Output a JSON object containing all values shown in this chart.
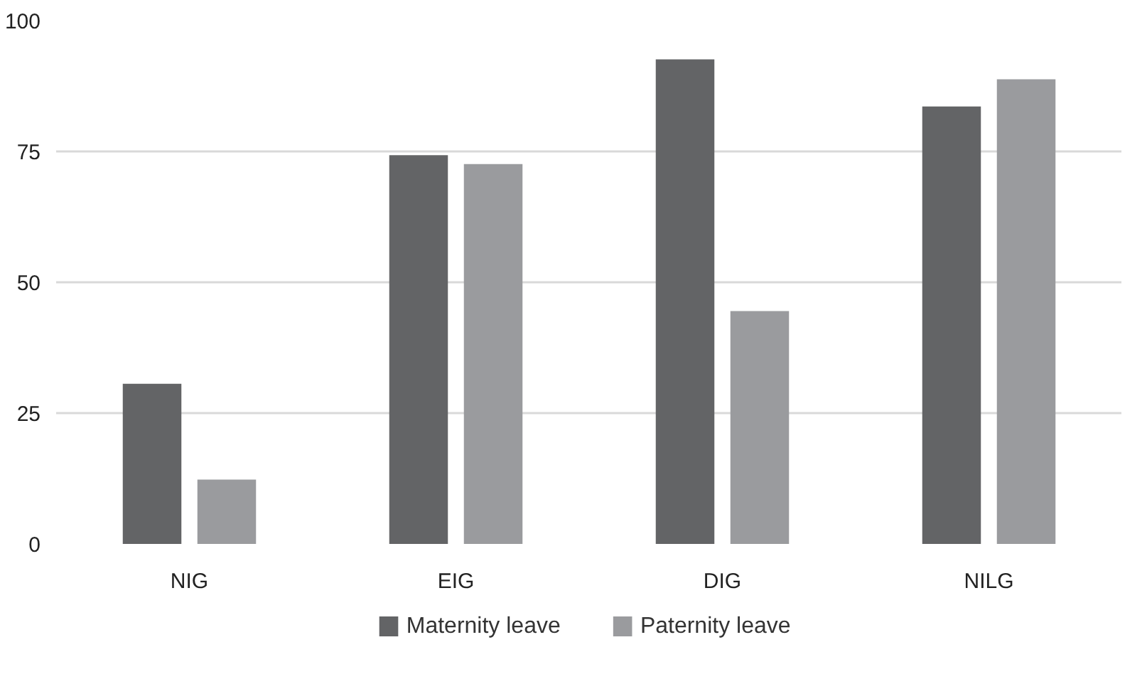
{
  "chart_data": {
    "type": "bar",
    "categories": [
      "NIG",
      "EIG",
      "DIG",
      "NILG"
    ],
    "series": [
      {
        "name": "Maternity leave",
        "color": "#636466",
        "values": [
          30.6,
          74.3,
          92.6,
          83.6
        ]
      },
      {
        "name": "Paternity leave",
        "color": "#9a9b9e",
        "values": [
          12.3,
          72.6,
          44.5,
          88.8
        ]
      }
    ],
    "ylim": [
      0,
      100
    ],
    "yticks": [
      0,
      25,
      50,
      75,
      100
    ],
    "grid": "y",
    "legend": "bottom"
  }
}
